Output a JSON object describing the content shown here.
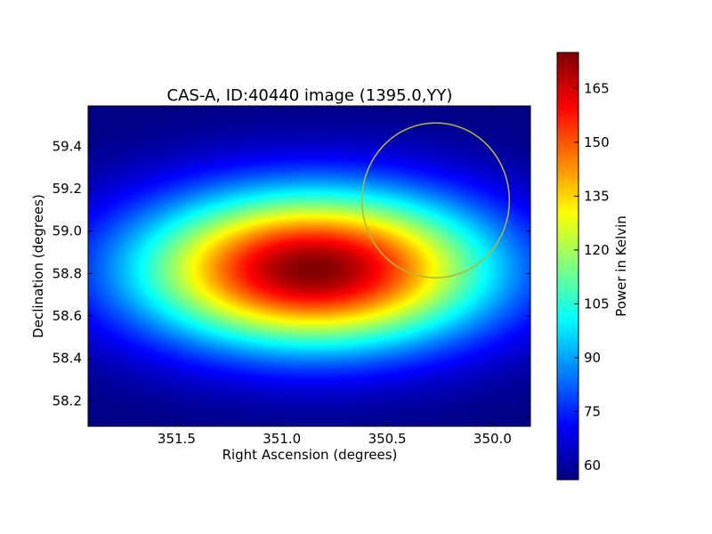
{
  "chart_data": {
    "type": "heatmap",
    "title": "CAS-A, ID:40440 image (1395.0,YY)",
    "xlabel": "Right Ascension (degrees)",
    "ylabel": "Declination (degrees)",
    "xlim": [
      351.92,
      349.82
    ],
    "ylim": [
      58.08,
      59.59
    ],
    "x_ticks": [
      351.5,
      351.0,
      350.5,
      350.0
    ],
    "x_tick_labels": [
      "351.5",
      "351.0",
      "350.5",
      "350.0"
    ],
    "y_ticks": [
      58.2,
      58.4,
      58.6,
      58.8,
      59.0,
      59.2,
      59.4
    ],
    "y_tick_labels": [
      "58.2",
      "58.4",
      "58.6",
      "58.8",
      "59.0",
      "59.2",
      "59.4"
    ],
    "colormap": "jet",
    "colorbar": {
      "label": "Power in Kelvin",
      "min": 56,
      "max": 175,
      "ticks": [
        60,
        75,
        90,
        105,
        120,
        135,
        150,
        165
      ],
      "tick_labels": [
        "60",
        "75",
        "90",
        "105",
        "120",
        "135",
        "150",
        "165"
      ]
    },
    "field": {
      "peak_ra": 350.85,
      "peak_dec": 58.82,
      "peak_value": 175,
      "edge_value": 56
    },
    "circle": {
      "center_ra": 350.27,
      "center_dec": 59.145,
      "radius_ra_deg": 0.35,
      "radius_dec_deg": 0.365,
      "color": "#b5b833"
    },
    "grid": false
  }
}
